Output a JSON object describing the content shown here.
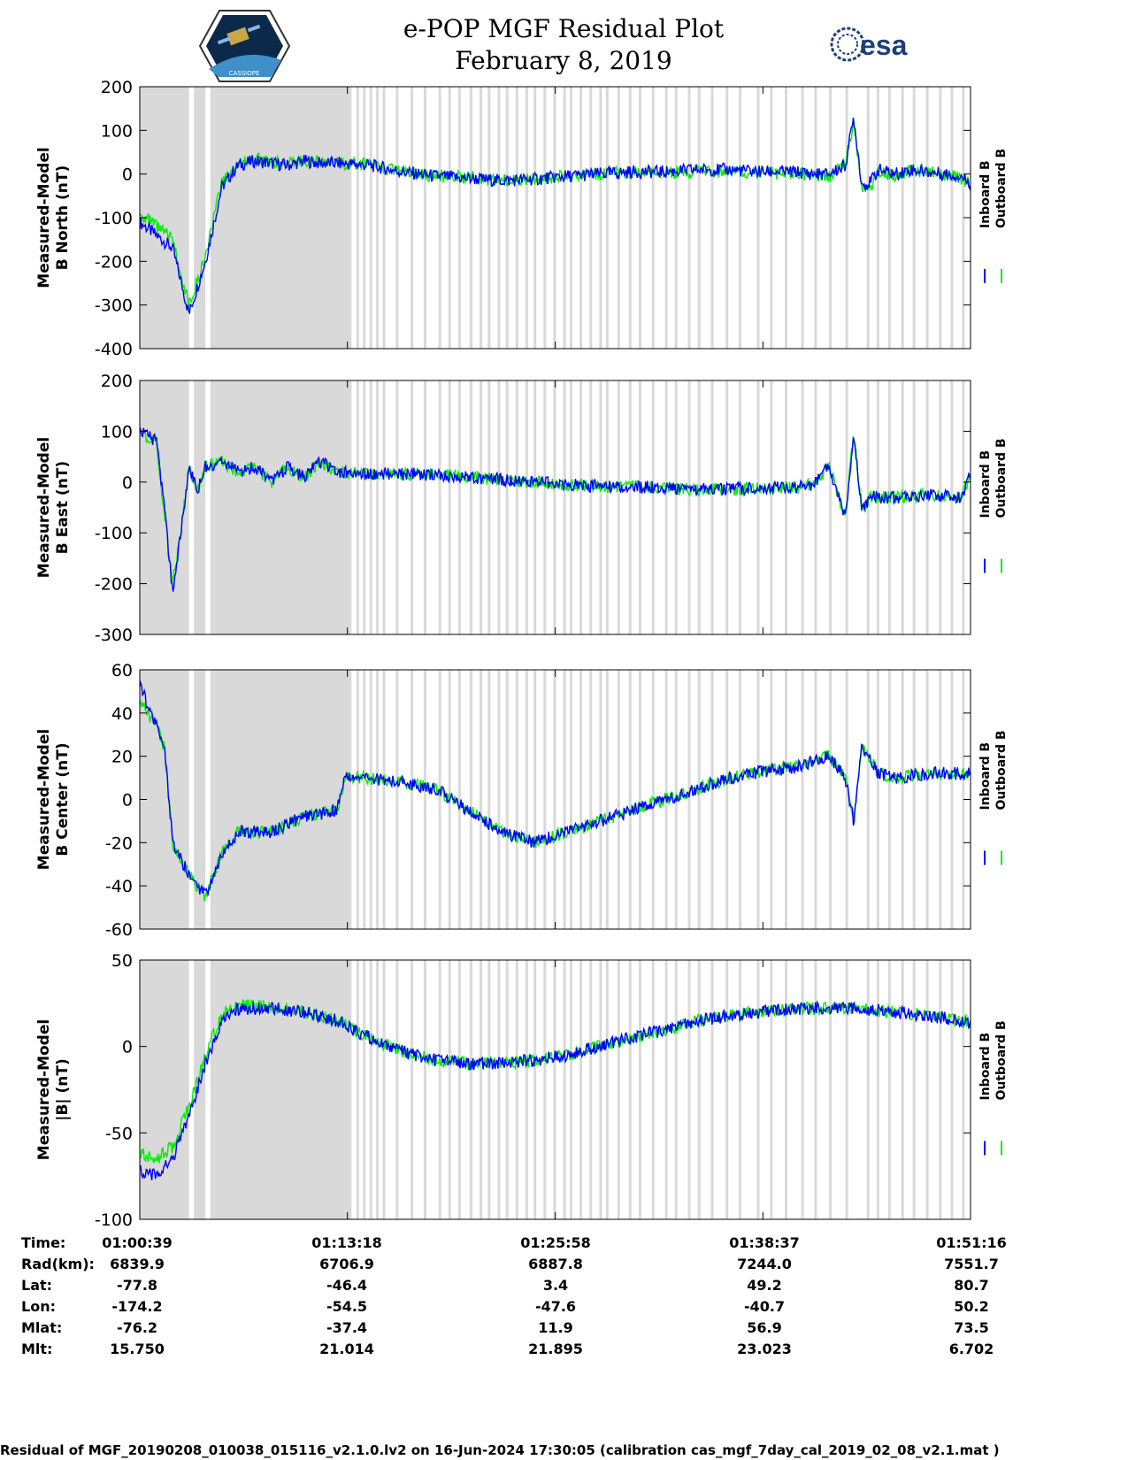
{
  "header": {
    "title_line1": "e-POP MGF Residual Plot",
    "title_line2": "February 8, 2019",
    "esa_logo_text": "esa",
    "cassiope_logo_text": "CASSIOPE"
  },
  "colors": {
    "inboard": "#0000ff",
    "outboard": "#00ee00",
    "gap_shade": "#d9d9d9",
    "axis": "#000000"
  },
  "chart_data": [
    {
      "type": "line",
      "name": "b-north",
      "ylabel_line1": "Measured-Model",
      "ylabel_line2": "B North (nT)",
      "ylim": [
        -400,
        200
      ],
      "yticks": [
        -400,
        -300,
        -200,
        -100,
        0,
        100,
        200
      ],
      "x_unit": "minutes since 01:00:39",
      "xlim": [
        0,
        50.62
      ],
      "series": [
        {
          "name": "Inboard B",
          "x": [
            0,
            1,
            2,
            3,
            4,
            5,
            6,
            7,
            8,
            9,
            10,
            11,
            12,
            14,
            16,
            18,
            20,
            22,
            24,
            26,
            28,
            30,
            32,
            34,
            36,
            38,
            40,
            41,
            42,
            43,
            43.5,
            44,
            44.5,
            45,
            46,
            47,
            48,
            49,
            50,
            50.6
          ],
          "y": [
            -110,
            -140,
            -170,
            -320,
            -200,
            -30,
            20,
            30,
            25,
            20,
            30,
            25,
            25,
            20,
            5,
            -5,
            -10,
            -15,
            -12,
            -5,
            0,
            5,
            5,
            10,
            10,
            5,
            5,
            0,
            0,
            20,
            130,
            -25,
            -20,
            10,
            0,
            10,
            5,
            0,
            -5,
            -20
          ]
        },
        {
          "name": "Outboard B",
          "x": [
            0,
            1,
            2,
            3,
            4,
            5,
            6,
            7,
            8,
            9,
            10,
            11,
            12,
            14,
            16,
            18,
            20,
            22,
            24,
            26,
            28,
            30,
            32,
            34,
            36,
            38,
            40,
            41,
            42,
            43,
            43.5,
            44,
            44.5,
            45,
            46,
            47,
            48,
            49,
            50,
            50.6
          ],
          "y": [
            -90,
            -120,
            -150,
            -300,
            -190,
            -20,
            25,
            35,
            28,
            22,
            32,
            27,
            26,
            21,
            6,
            -4,
            -9,
            -14,
            -11,
            -4,
            1,
            4,
            3,
            7,
            7,
            2,
            2,
            -5,
            -8,
            25,
            120,
            -40,
            -30,
            5,
            -5,
            10,
            5,
            -2,
            -10,
            -25
          ]
        }
      ]
    },
    {
      "type": "line",
      "name": "b-east",
      "ylabel_line1": "Measured-Model",
      "ylabel_line2": "B East (nT)",
      "ylim": [
        -300,
        200
      ],
      "yticks": [
        -300,
        -200,
        -100,
        0,
        100,
        200
      ],
      "x_unit": "minutes since 01:00:39",
      "xlim": [
        0,
        50.62
      ],
      "series": [
        {
          "name": "Inboard B",
          "x": [
            0,
            0.5,
            1,
            1.5,
            2,
            2.5,
            3,
            3.5,
            4,
            5,
            6,
            7,
            8,
            9,
            10,
            11,
            12,
            14,
            16,
            18,
            20,
            22,
            24,
            26,
            28,
            30,
            32,
            34,
            38,
            40,
            41,
            42,
            43,
            43.5,
            44,
            44.5,
            45,
            46,
            48,
            50,
            50.6
          ],
          "y": [
            100,
            90,
            80,
            -50,
            -220,
            -100,
            30,
            -20,
            30,
            40,
            20,
            30,
            0,
            30,
            10,
            40,
            20,
            15,
            15,
            15,
            10,
            5,
            0,
            -5,
            -8,
            -10,
            -10,
            -15,
            -12,
            -10,
            -5,
            30,
            -70,
            100,
            -60,
            -30,
            -30,
            -30,
            -25,
            -30,
            10
          ]
        },
        {
          "name": "Outboard B",
          "x": [
            0,
            0.5,
            1,
            1.5,
            2,
            2.5,
            3,
            3.5,
            4,
            5,
            6,
            7,
            8,
            9,
            10,
            11,
            12,
            14,
            16,
            18,
            20,
            22,
            24,
            26,
            28,
            30,
            32,
            34,
            38,
            40,
            41,
            42,
            43,
            43.5,
            44,
            44.5,
            45,
            46,
            48,
            50,
            50.6
          ],
          "y": [
            100,
            88,
            78,
            -60,
            -200,
            -100,
            30,
            -20,
            30,
            40,
            20,
            30,
            0,
            30,
            10,
            40,
            20,
            15,
            15,
            15,
            10,
            5,
            0,
            -5,
            -8,
            -10,
            -10,
            -15,
            -12,
            -10,
            -5,
            30,
            -70,
            100,
            -60,
            -30,
            -30,
            -30,
            -25,
            -30,
            10
          ]
        }
      ]
    },
    {
      "type": "line",
      "name": "b-center",
      "ylabel_line1": "Measured-Model",
      "ylabel_line2": "B Center (nT)",
      "ylim": [
        -60,
        60
      ],
      "yticks": [
        -60,
        -40,
        -20,
        0,
        20,
        40,
        60
      ],
      "x_unit": "minutes since 01:00:39",
      "xlim": [
        0,
        50.62
      ],
      "series": [
        {
          "name": "Inboard B",
          "x": [
            0,
            0.5,
            1,
            1.5,
            2,
            3,
            4,
            5,
            6,
            8,
            10,
            12,
            12.5,
            14,
            16,
            18,
            20,
            22,
            24,
            26,
            28,
            30,
            32,
            34,
            36,
            38,
            40,
            42,
            43,
            43.5,
            44,
            45,
            46,
            48,
            50,
            50.6
          ],
          "y": [
            55,
            42,
            35,
            25,
            -20,
            -35,
            -45,
            -25,
            -15,
            -15,
            -8,
            -5,
            10,
            10,
            8,
            5,
            -5,
            -15,
            -20,
            -15,
            -10,
            -5,
            0,
            5,
            10,
            13,
            15,
            20,
            10,
            -10,
            25,
            12,
            10,
            12,
            12,
            12
          ]
        },
        {
          "name": "Outboard B",
          "x": [
            0,
            0.5,
            1,
            1.5,
            2,
            3,
            4,
            5,
            6,
            8,
            10,
            12,
            12.5,
            14,
            16,
            18,
            20,
            22,
            24,
            26,
            28,
            30,
            32,
            34,
            36,
            38,
            40,
            42,
            43,
            43.5,
            44,
            45,
            46,
            48,
            50,
            50.6
          ],
          "y": [
            45,
            40,
            34,
            24,
            -20,
            -35,
            -45,
            -25,
            -15,
            -15,
            -8,
            -5,
            10,
            10,
            8,
            5,
            -5,
            -15,
            -20,
            -15,
            -10,
            -5,
            0,
            5,
            10,
            13,
            15,
            20,
            10,
            -10,
            25,
            12,
            10,
            12,
            12,
            12
          ]
        }
      ]
    },
    {
      "type": "line",
      "name": "b-total",
      "ylabel_line1": "Measured-Model",
      "ylabel_line2": "|B| (nT)",
      "ylim": [
        -100,
        50
      ],
      "yticks": [
        -100,
        -50,
        0,
        50
      ],
      "x_unit": "minutes since 01:00:39",
      "xlim": [
        0,
        50.62
      ],
      "series": [
        {
          "name": "Inboard B",
          "x": [
            0,
            1,
            2,
            3,
            4,
            5,
            6,
            8,
            10,
            12,
            14,
            16,
            18,
            20,
            22,
            24,
            26,
            28,
            30,
            32,
            34,
            36,
            38,
            40,
            42,
            44,
            46,
            48,
            50,
            50.6
          ],
          "y": [
            -72,
            -75,
            -65,
            -40,
            -10,
            15,
            22,
            22,
            20,
            15,
            5,
            -3,
            -8,
            -10,
            -10,
            -8,
            -5,
            0,
            5,
            10,
            15,
            18,
            20,
            22,
            22,
            22,
            20,
            18,
            15,
            14
          ]
        },
        {
          "name": "Outboard B",
          "x": [
            0,
            1,
            2,
            3,
            4,
            5,
            6,
            8,
            10,
            12,
            14,
            16,
            18,
            20,
            22,
            24,
            26,
            28,
            30,
            32,
            34,
            36,
            38,
            40,
            42,
            44,
            46,
            48,
            50,
            50.6
          ],
          "y": [
            -62,
            -65,
            -58,
            -35,
            -5,
            18,
            24,
            23,
            20,
            15,
            5,
            -3,
            -8,
            -10,
            -10,
            -8,
            -5,
            0,
            5,
            10,
            15,
            18,
            20,
            22,
            22,
            22,
            20,
            18,
            15,
            14
          ]
        }
      ]
    }
  ],
  "legend": {
    "inboard_label": "Inboard B",
    "outboard_label": "Outboard B"
  },
  "shading": {
    "blocks_min": [
      [
        0,
        3
      ],
      [
        3.3,
        4.0
      ],
      [
        4.3,
        12.9
      ]
    ],
    "stripes_min": [
      13.2,
      13.6,
      14.0,
      14.4,
      14.8,
      15.6,
      16.5,
      17.3,
      18.2,
      18.8,
      19.4,
      20.1,
      20.7,
      21.2,
      21.8,
      22.3,
      22.9,
      23.5,
      24.0,
      24.6,
      25.2,
      25.8,
      26.2,
      26.8,
      27.4,
      28.0,
      28.4,
      29.1,
      29.8,
      30.4,
      31.2,
      32.0,
      32.6,
      33.4,
      34.0,
      34.8,
      35.7,
      36.5,
      37.6,
      38.4,
      39.3,
      40.3,
      41.1,
      42.0,
      43.0,
      44.3,
      44.9,
      45.6,
      46.4,
      47.1,
      47.9,
      48.7,
      49.4,
      50.1
    ]
  },
  "x_ticks_min": [
    0,
    12.65,
    25.32,
    37.97,
    50.62
  ],
  "table": {
    "row_labels": [
      "Time:",
      "Rad(km):",
      "Lat:",
      "Lon:",
      "Mlat:",
      "Mlt:"
    ],
    "columns": [
      [
        "01:00:39",
        "6839.9",
        "-77.8",
        "-174.2",
        "-76.2",
        "15.750"
      ],
      [
        "01:13:18",
        "6706.9",
        "-46.4",
        "-54.5",
        "-37.4",
        "21.014"
      ],
      [
        "01:25:58",
        "6887.8",
        "3.4",
        "-47.6",
        "11.9",
        "21.895"
      ],
      [
        "01:38:37",
        "7244.0",
        "49.2",
        "-40.7",
        "56.9",
        "23.023"
      ],
      [
        "01:51:16",
        "7551.7",
        "80.7",
        "50.2",
        "73.5",
        "6.702"
      ]
    ]
  },
  "footer": "Residual of MGF_20190208_010038_015116_v2.1.0.lv2 on 16-Jun-2024 17:30:05 (calibration cas_mgf_7day_cal_2019_02_08_v2.1.mat )"
}
